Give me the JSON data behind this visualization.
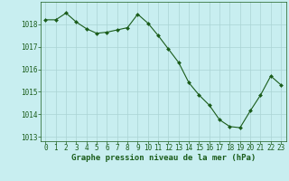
{
  "x": [
    0,
    1,
    2,
    3,
    4,
    5,
    6,
    7,
    8,
    9,
    10,
    11,
    12,
    13,
    14,
    15,
    16,
    17,
    18,
    19,
    20,
    21,
    22,
    23
  ],
  "y": [
    1018.2,
    1018.2,
    1018.5,
    1018.1,
    1017.8,
    1017.6,
    1017.65,
    1017.75,
    1017.85,
    1018.45,
    1018.05,
    1017.5,
    1016.9,
    1016.3,
    1015.4,
    1014.85,
    1014.4,
    1013.75,
    1013.45,
    1013.4,
    1014.15,
    1014.85,
    1015.7,
    1015.3
  ],
  "xlim": [
    -0.5,
    23.5
  ],
  "ylim": [
    1012.8,
    1019.0
  ],
  "yticks": [
    1013,
    1014,
    1015,
    1016,
    1017,
    1018
  ],
  "xticks": [
    0,
    1,
    2,
    3,
    4,
    5,
    6,
    7,
    8,
    9,
    10,
    11,
    12,
    13,
    14,
    15,
    16,
    17,
    18,
    19,
    20,
    21,
    22,
    23
  ],
  "line_color": "#1a5c1a",
  "marker_color": "#1a5c1a",
  "bg_color": "#c8eef0",
  "grid_color": "#aad4d4",
  "xlabel": "Graphe pression niveau de la mer (hPa)",
  "xlabel_color": "#1a5c1a",
  "tick_color": "#1a5c1a",
  "label_fontsize": 6.5,
  "tick_fontsize": 5.5
}
